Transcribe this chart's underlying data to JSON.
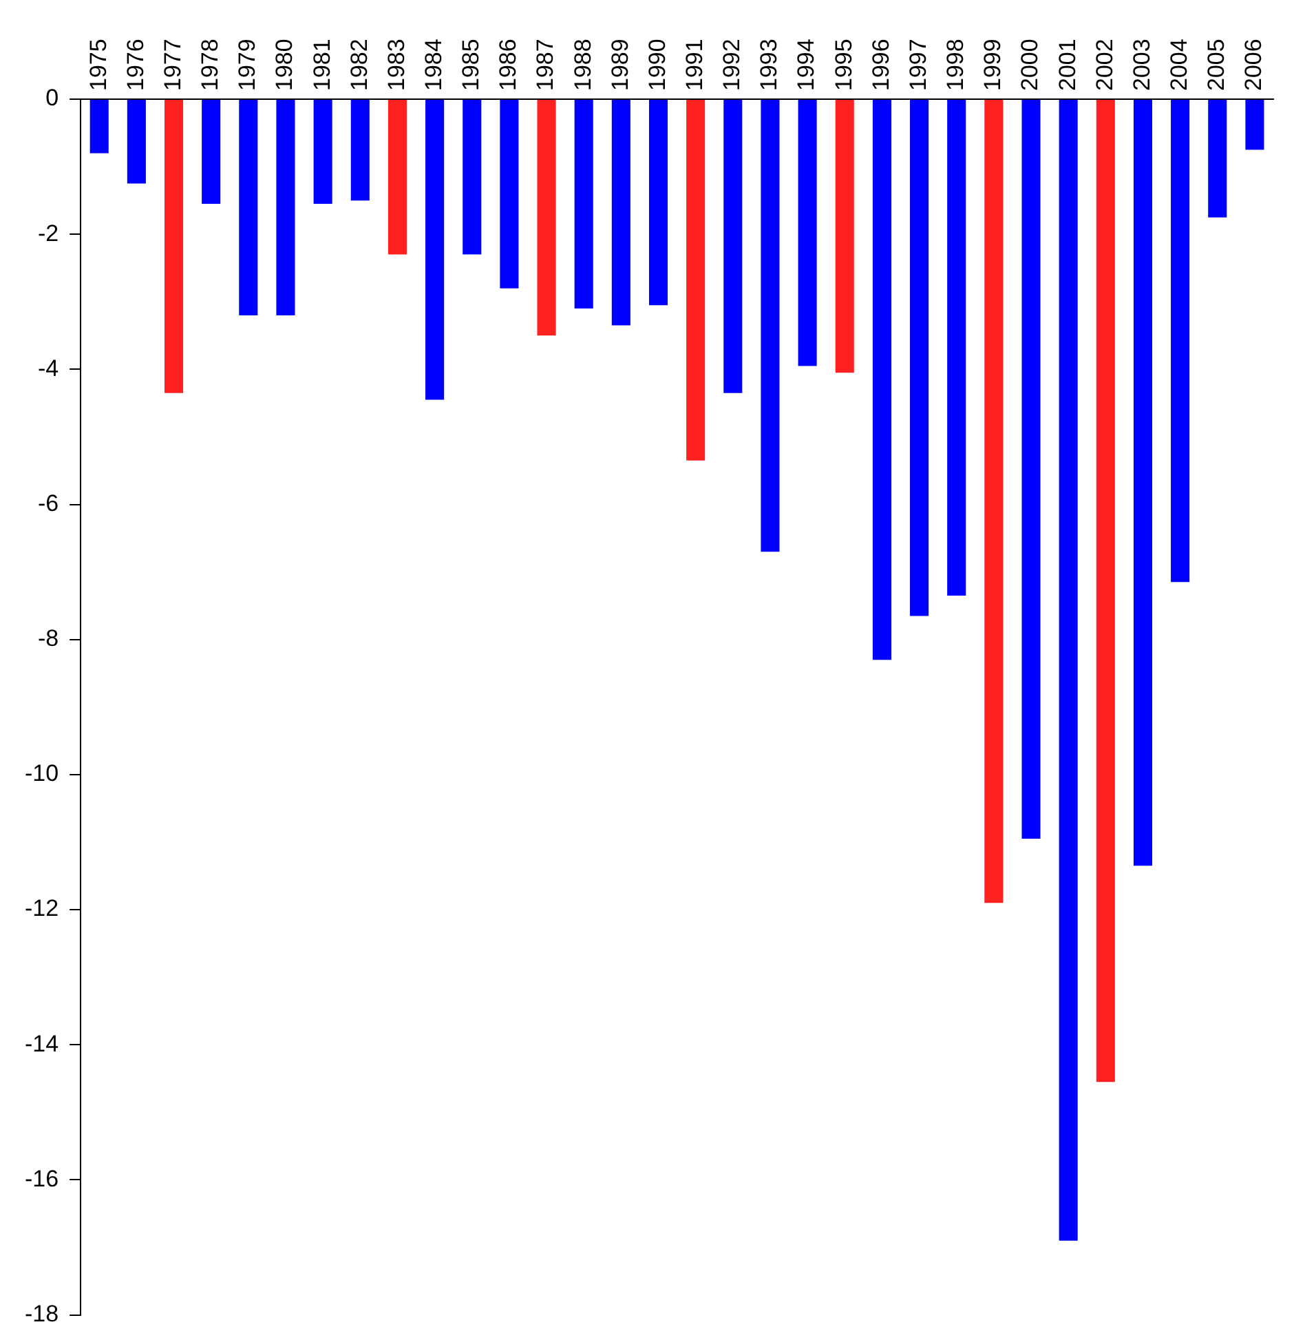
{
  "chart_data": {
    "type": "bar",
    "categories": [
      "1975",
      "1976",
      "1977",
      "1978",
      "1979",
      "1980",
      "1981",
      "1982",
      "1983",
      "1984",
      "1985",
      "1986",
      "1987",
      "1988",
      "1989",
      "1990",
      "1991",
      "1992",
      "1993",
      "1994",
      "1995",
      "1996",
      "1997",
      "1998",
      "1999",
      "2000",
      "2001",
      "2002",
      "2003",
      "2004",
      "2005",
      "2006"
    ],
    "values": [
      -0.8,
      -1.25,
      -4.35,
      -1.55,
      -3.2,
      -3.2,
      -1.55,
      -1.5,
      -2.3,
      -4.45,
      -2.3,
      -2.8,
      -3.5,
      -3.1,
      -3.35,
      -3.05,
      -5.35,
      -4.35,
      -6.7,
      -3.95,
      -4.05,
      -8.3,
      -7.65,
      -7.35,
      -11.9,
      -10.95,
      -16.9,
      -14.55,
      -11.35,
      -7.15,
      -1.75,
      -0.75
    ],
    "colors": [
      "#0000ff",
      "#0000ff",
      "#ff2020",
      "#0000ff",
      "#0000ff",
      "#0000ff",
      "#0000ff",
      "#0000ff",
      "#ff2020",
      "#0000ff",
      "#0000ff",
      "#0000ff",
      "#ff2020",
      "#0000ff",
      "#0000ff",
      "#0000ff",
      "#ff2020",
      "#0000ff",
      "#0000ff",
      "#0000ff",
      "#ff2020",
      "#0000ff",
      "#0000ff",
      "#0000ff",
      "#ff2020",
      "#0000ff",
      "#0000ff",
      "#ff2020",
      "#0000ff",
      "#0000ff",
      "#0000ff",
      "#0000ff"
    ],
    "ylim": [
      -18,
      0
    ],
    "yticks": [
      -18,
      -16,
      -14,
      -12,
      -10,
      -8,
      -6,
      -4,
      -2,
      0
    ],
    "grid": false,
    "legend": false
  }
}
